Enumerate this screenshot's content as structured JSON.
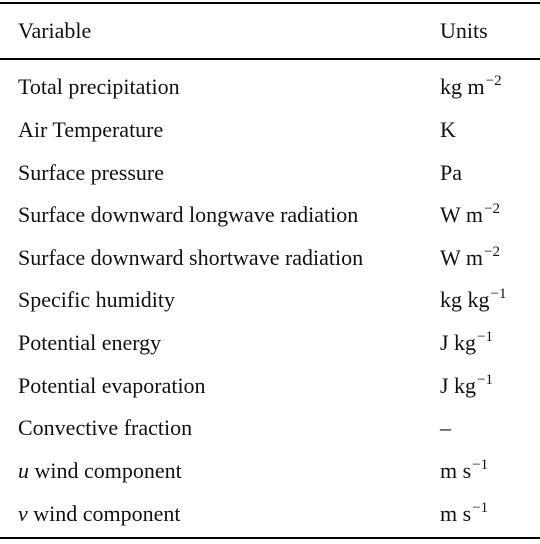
{
  "header": {
    "variable": "Variable",
    "units": "Units"
  },
  "rows": [
    {
      "pre": "",
      "sym": "",
      "label": "Total precipitation",
      "unit_base": "kg m",
      "unit_sup": "−2"
    },
    {
      "pre": "",
      "sym": "",
      "label": "Air Temperature",
      "unit_base": "K",
      "unit_sup": ""
    },
    {
      "pre": "",
      "sym": "",
      "label": "Surface pressure",
      "unit_base": "Pa",
      "unit_sup": ""
    },
    {
      "pre": "",
      "sym": "",
      "label": "Surface downward longwave radiation",
      "unit_base": "W m",
      "unit_sup": "−2"
    },
    {
      "pre": "",
      "sym": "",
      "label": "Surface downward shortwave radiation",
      "unit_base": "W m",
      "unit_sup": "−2"
    },
    {
      "pre": "",
      "sym": "",
      "label": "Specific humidity",
      "unit_base": "kg kg",
      "unit_sup": "−1"
    },
    {
      "pre": "",
      "sym": "",
      "label": "Potential energy",
      "unit_base": "J kg",
      "unit_sup": "−1"
    },
    {
      "pre": "",
      "sym": "",
      "label": "Potential evaporation",
      "unit_base": "J kg",
      "unit_sup": "−1"
    },
    {
      "pre": "",
      "sym": "",
      "label": "Convective fraction",
      "unit_base": "–",
      "unit_sup": ""
    },
    {
      "pre": "",
      "sym": "u",
      "label": " wind component",
      "unit_base": "m s",
      "unit_sup": "−1"
    },
    {
      "pre": "",
      "sym": "v",
      "label": " wind component",
      "unit_base": "m s",
      "unit_sup": "−1"
    }
  ]
}
